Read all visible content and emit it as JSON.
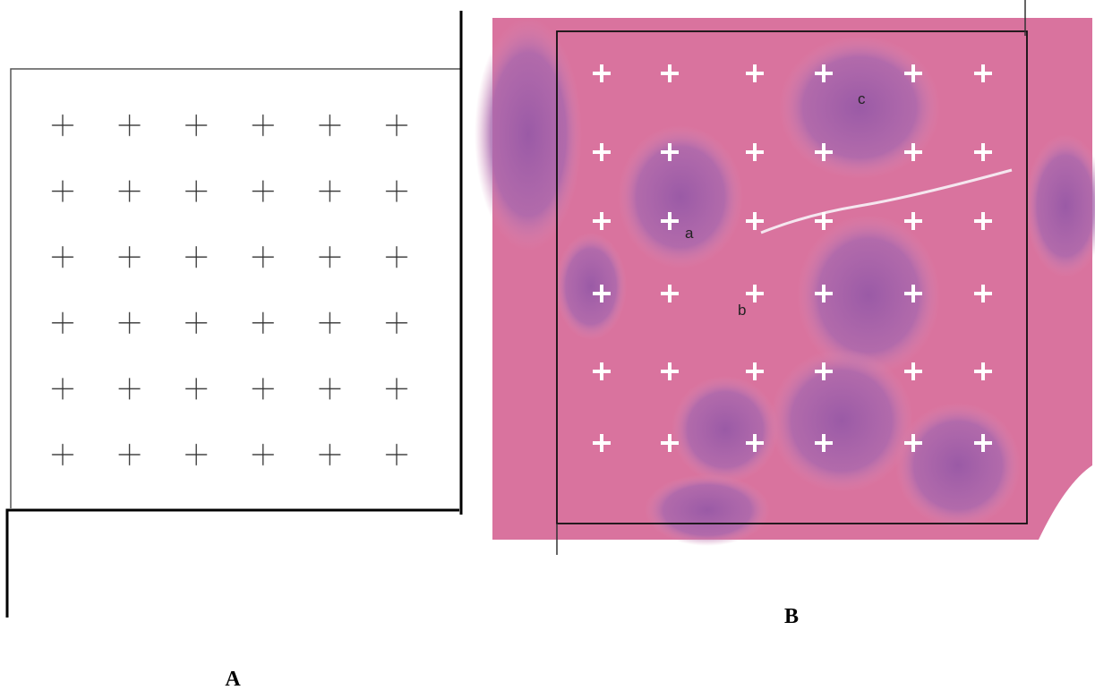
{
  "panels": [
    {
      "label": "A"
    },
    {
      "label": "B",
      "annotations": [
        "a",
        "b",
        "c"
      ]
    }
  ]
}
